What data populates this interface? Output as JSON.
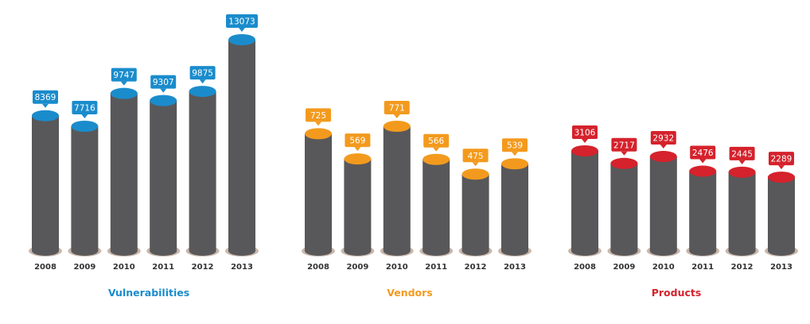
{
  "chart_data": [
    {
      "type": "bar",
      "title": "Vulnerabilities",
      "categories": [
        "2008",
        "2009",
        "2010",
        "2011",
        "2012",
        "2013"
      ],
      "values": [
        8369,
        7716,
        9747,
        9307,
        9875,
        13073
      ],
      "accent": "#1a8ccc",
      "bar_color": "#58585a"
    },
    {
      "type": "bar",
      "title": "Vendors",
      "categories": [
        "2008",
        "2009",
        "2010",
        "2011",
        "2012",
        "2013"
      ],
      "values": [
        725,
        569,
        771,
        566,
        475,
        539
      ],
      "accent": "#f39a1e",
      "bar_color": "#58585a"
    },
    {
      "type": "bar",
      "title": "Products",
      "categories": [
        "2008",
        "2009",
        "2010",
        "2011",
        "2012",
        "2013"
      ],
      "values": [
        3106,
        2717,
        2932,
        2476,
        2445,
        2289
      ],
      "accent": "#d5222c",
      "bar_color": "#58585a"
    }
  ]
}
